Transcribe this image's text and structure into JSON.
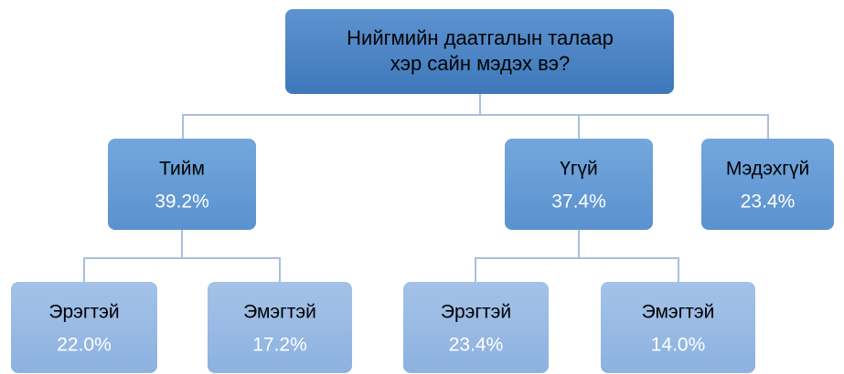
{
  "root": {
    "lines": [
      "Нийгмийн даатгалын талаар",
      "хэр сайн мэдэх вэ?"
    ]
  },
  "nodes": [
    {
      "label": "Тийм",
      "value": "39.2%"
    },
    {
      "label": "Үгүй",
      "value": "37.4%"
    },
    {
      "label": "Мэдэхгүй",
      "value": "23.4%"
    },
    {
      "label": "Эрэгтэй",
      "value": "22.0%"
    },
    {
      "label": "Эмэгтэй",
      "value": "17.2%"
    },
    {
      "label": "Эрэгтэй",
      "value": "23.4%"
    },
    {
      "label": "Эмэгтэй",
      "value": "14.0%"
    }
  ]
}
